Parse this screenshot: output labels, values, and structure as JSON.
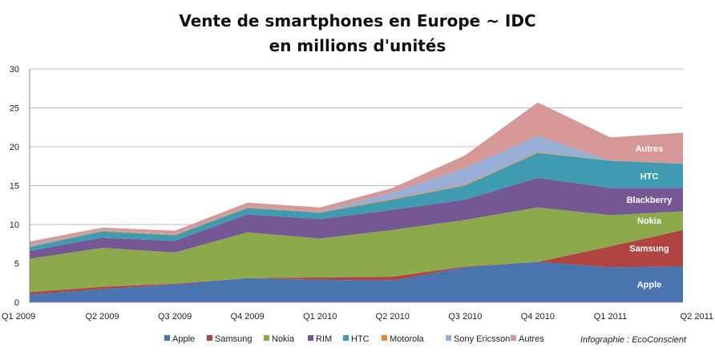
{
  "chart_data": {
    "type": "area",
    "stacked": true,
    "title": "Vente de smartphones en Europe ~ IDC",
    "subtitle": "en millions d'unités",
    "categories": [
      "Q1 2009",
      "Q2 2009",
      "Q3 2009",
      "Q4 2009",
      "Q1 2010",
      "Q2 2010",
      "Q3 2010",
      "Q4 2010",
      "Q1 2011",
      "Q2 2011"
    ],
    "ylim": [
      0,
      30
    ],
    "yticks": [
      0,
      5,
      10,
      15,
      20,
      25,
      30
    ],
    "grid": true,
    "legend_position": "bottom",
    "credit": "Infographie : EcoConscient",
    "series": [
      {
        "name": "Apple",
        "color": "#4a74b0",
        "values": [
          1.0,
          1.7,
          2.3,
          3.1,
          2.9,
          2.8,
          4.5,
          5.2,
          4.5,
          4.6
        ],
        "label": "Apple"
      },
      {
        "name": "Samsung",
        "color": "#b04440",
        "values": [
          0.3,
          0.3,
          0.1,
          0.0,
          0.3,
          0.5,
          0.1,
          0.0,
          2.7,
          4.7
        ],
        "label": "Samsung"
      },
      {
        "name": "Nokia",
        "color": "#8caa4c",
        "values": [
          4.3,
          5.0,
          4.0,
          5.9,
          5.0,
          6.0,
          6.0,
          7.0,
          4.0,
          2.4
        ],
        "label": "Nokia"
      },
      {
        "name": "RIM",
        "color": "#755794",
        "values": [
          1.0,
          1.3,
          1.5,
          2.3,
          2.5,
          2.6,
          2.6,
          3.8,
          3.5,
          3.0
        ],
        "label": "Blackberry"
      },
      {
        "name": "HTC",
        "color": "#3f9bb1",
        "values": [
          0.5,
          0.8,
          0.7,
          0.8,
          0.8,
          1.3,
          1.8,
          3.2,
          3.5,
          3.1
        ],
        "label": "HTC"
      },
      {
        "name": "Motorola",
        "color": "#e48b2f",
        "values": [
          0.1,
          0.1,
          0.1,
          0.1,
          0.1,
          0.1,
          0.1,
          0.1,
          0.0,
          0.0
        ],
        "label": ""
      },
      {
        "name": "Sony Ericsson",
        "color": "#98aed4",
        "values": [
          0.2,
          0.1,
          0.1,
          0.1,
          0.1,
          0.8,
          2.2,
          2.1,
          0.0,
          0.0
        ],
        "label": ""
      },
      {
        "name": "Autres",
        "color": "#d69797",
        "values": [
          0.4,
          0.3,
          0.4,
          0.5,
          0.5,
          0.6,
          1.6,
          4.3,
          3.0,
          4.0
        ],
        "label": "Autres"
      }
    ]
  }
}
